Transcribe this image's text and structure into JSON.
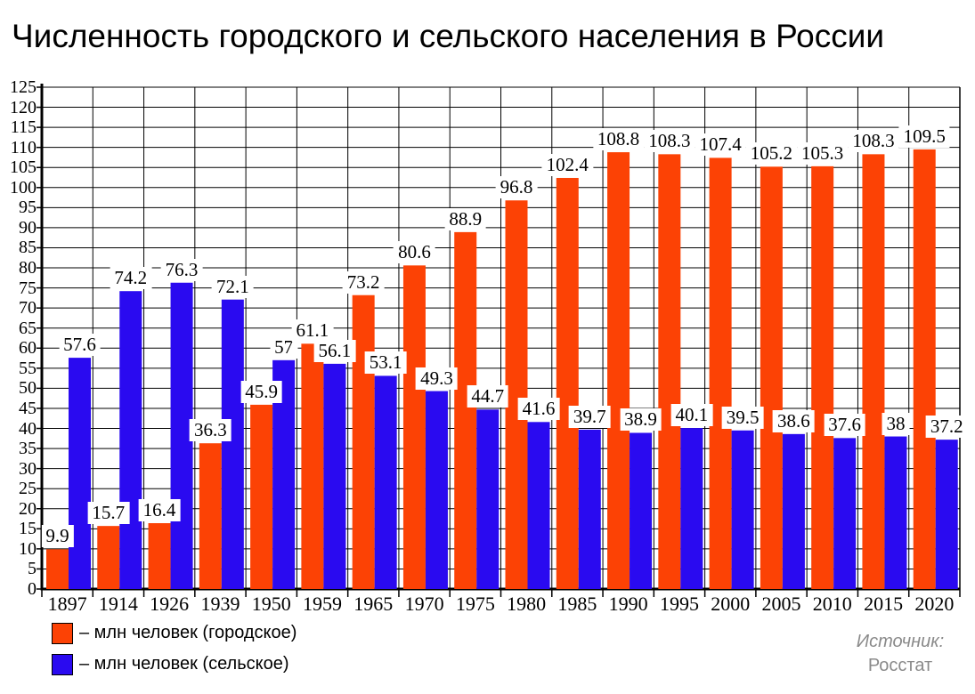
{
  "title": "Численность городского и сельского населения в России",
  "legend": [
    {
      "series": "urban",
      "label": "– млн человек (городское)",
      "color": "#FC4205"
    },
    {
      "series": "rural",
      "label": "– млн человек (сельское)",
      "color": "#2A0AF0"
    }
  ],
  "source": {
    "line1": "Источник:",
    "line2": "Росстат",
    "color": "#8a8a8a"
  },
  "chart_data": {
    "type": "bar",
    "title": "Численность городского и сельского населения в России",
    "xlabel": "",
    "ylabel": "",
    "categories": [
      "1897",
      "1914",
      "1926",
      "1939",
      "1950",
      "1959",
      "1965",
      "1970",
      "1975",
      "1980",
      "1985",
      "1990",
      "1995",
      "2000",
      "2005",
      "2010",
      "2015",
      "2020"
    ],
    "series": [
      {
        "name": "млн человек (городское)",
        "key": "urban",
        "color": "#FC4205",
        "values": [
          9.9,
          15.7,
          16.4,
          36.3,
          45.9,
          61.1,
          73.2,
          80.6,
          88.9,
          96.8,
          102.4,
          108.8,
          108.3,
          107.4,
          105.2,
          105.3,
          108.3,
          109.5
        ]
      },
      {
        "name": "млн человек (сельское)",
        "key": "rural",
        "color": "#2A0AF0",
        "values": [
          57.6,
          74.2,
          76.3,
          72.1,
          57,
          56.1,
          53.1,
          49.3,
          44.7,
          41.6,
          39.7,
          38.9,
          40.1,
          39.5,
          38.6,
          37.6,
          38,
          37.2
        ]
      }
    ],
    "ylim": [
      0,
      125
    ],
    "ytick_step": 5,
    "grid": true,
    "value_labels": true,
    "legend_position": "bottom-left",
    "axis_color": "#000000",
    "grid_color": "#000000"
  }
}
